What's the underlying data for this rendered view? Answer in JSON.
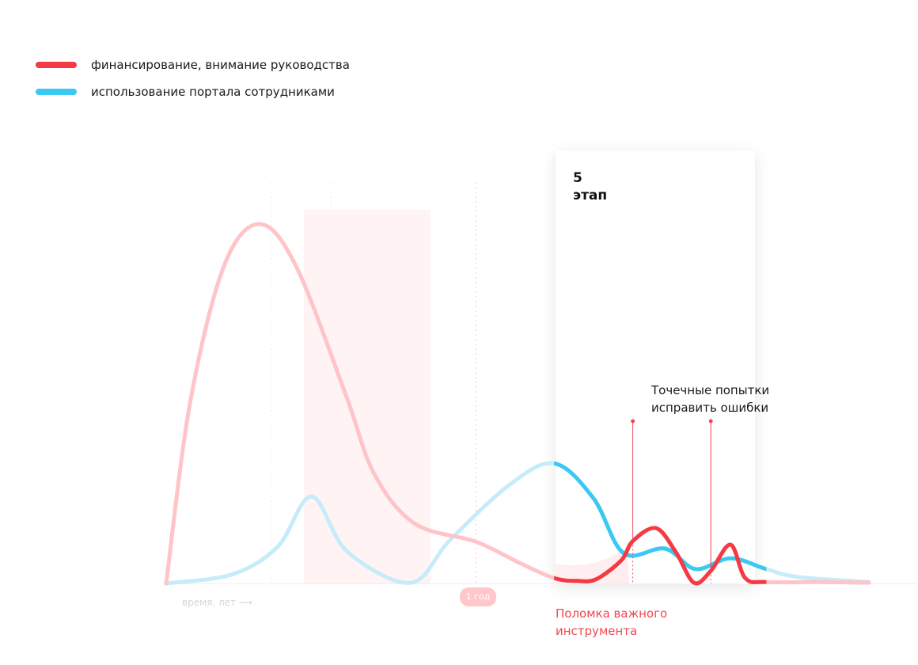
{
  "legend": {
    "funding": {
      "label": "финансирование, внимание руководства",
      "color": "#f33a45"
    },
    "usage": {
      "label": "использование портала сотрудниками",
      "color": "#3bc8f2"
    }
  },
  "stage": {
    "number": "5",
    "word": "этап"
  },
  "annotations": {
    "fixes_line1": "Точечные попытки",
    "fixes_line2": "исправить ошибки",
    "break_line1": "Поломка важного",
    "break_line2": "инструмента"
  },
  "axis": {
    "x_label": "время, лет ⟶",
    "year_marker": "1 год"
  },
  "chart_data": {
    "type": "line",
    "title": "",
    "xlabel": "время, лет ⟶",
    "ylabel": "",
    "x_range": [
      0,
      100
    ],
    "y_range": [
      0,
      100
    ],
    "grid": false,
    "legend_position": "top-left",
    "year_marker_x": 44.1,
    "highlight_range": [
      55.2,
      85.4
    ],
    "series": [
      {
        "name": "финансирование, внимание руководства",
        "color": "#f33a45",
        "points": [
          [
            0,
            0
          ],
          [
            3.4,
            50.3
          ],
          [
            8.2,
            88.2
          ],
          [
            13.2,
            100
          ],
          [
            18.4,
            88.6
          ],
          [
            25.5,
            52.8
          ],
          [
            29.6,
            30.5
          ],
          [
            35.4,
            16.6
          ],
          [
            44.1,
            11.6
          ],
          [
            50.3,
            5.7
          ],
          [
            55.2,
            1.5
          ],
          [
            58.5,
            0.7
          ],
          [
            61.2,
            1.2
          ],
          [
            64.8,
            6.5
          ],
          [
            66.4,
            11.8
          ],
          [
            69.7,
            15.4
          ],
          [
            72.5,
            8.8
          ],
          [
            75.1,
            0.2
          ],
          [
            77.5,
            3.5
          ],
          [
            80.3,
            10.8
          ],
          [
            82.4,
            1.5
          ],
          [
            85.4,
            0.4
          ],
          [
            93.3,
            0.4
          ],
          [
            100,
            0.2
          ]
        ]
      },
      {
        "name": "использование портала сотрудниками",
        "color": "#3bc8f2",
        "points": [
          [
            0,
            0
          ],
          [
            9.5,
            2.6
          ],
          [
            15.9,
            10.3
          ],
          [
            20.7,
            24.2
          ],
          [
            25.8,
            8.8
          ],
          [
            34.8,
            0.2
          ],
          [
            40.4,
            12.1
          ],
          [
            48.9,
            27.5
          ],
          [
            55.2,
            33.4
          ],
          [
            60.8,
            23.7
          ],
          [
            65.1,
            8.4
          ],
          [
            71.0,
            9.7
          ],
          [
            75.3,
            4.0
          ],
          [
            80.3,
            7.0
          ],
          [
            85.4,
            4.0
          ],
          [
            89.9,
            1.8
          ],
          [
            100,
            0.4
          ]
        ]
      }
    ]
  }
}
